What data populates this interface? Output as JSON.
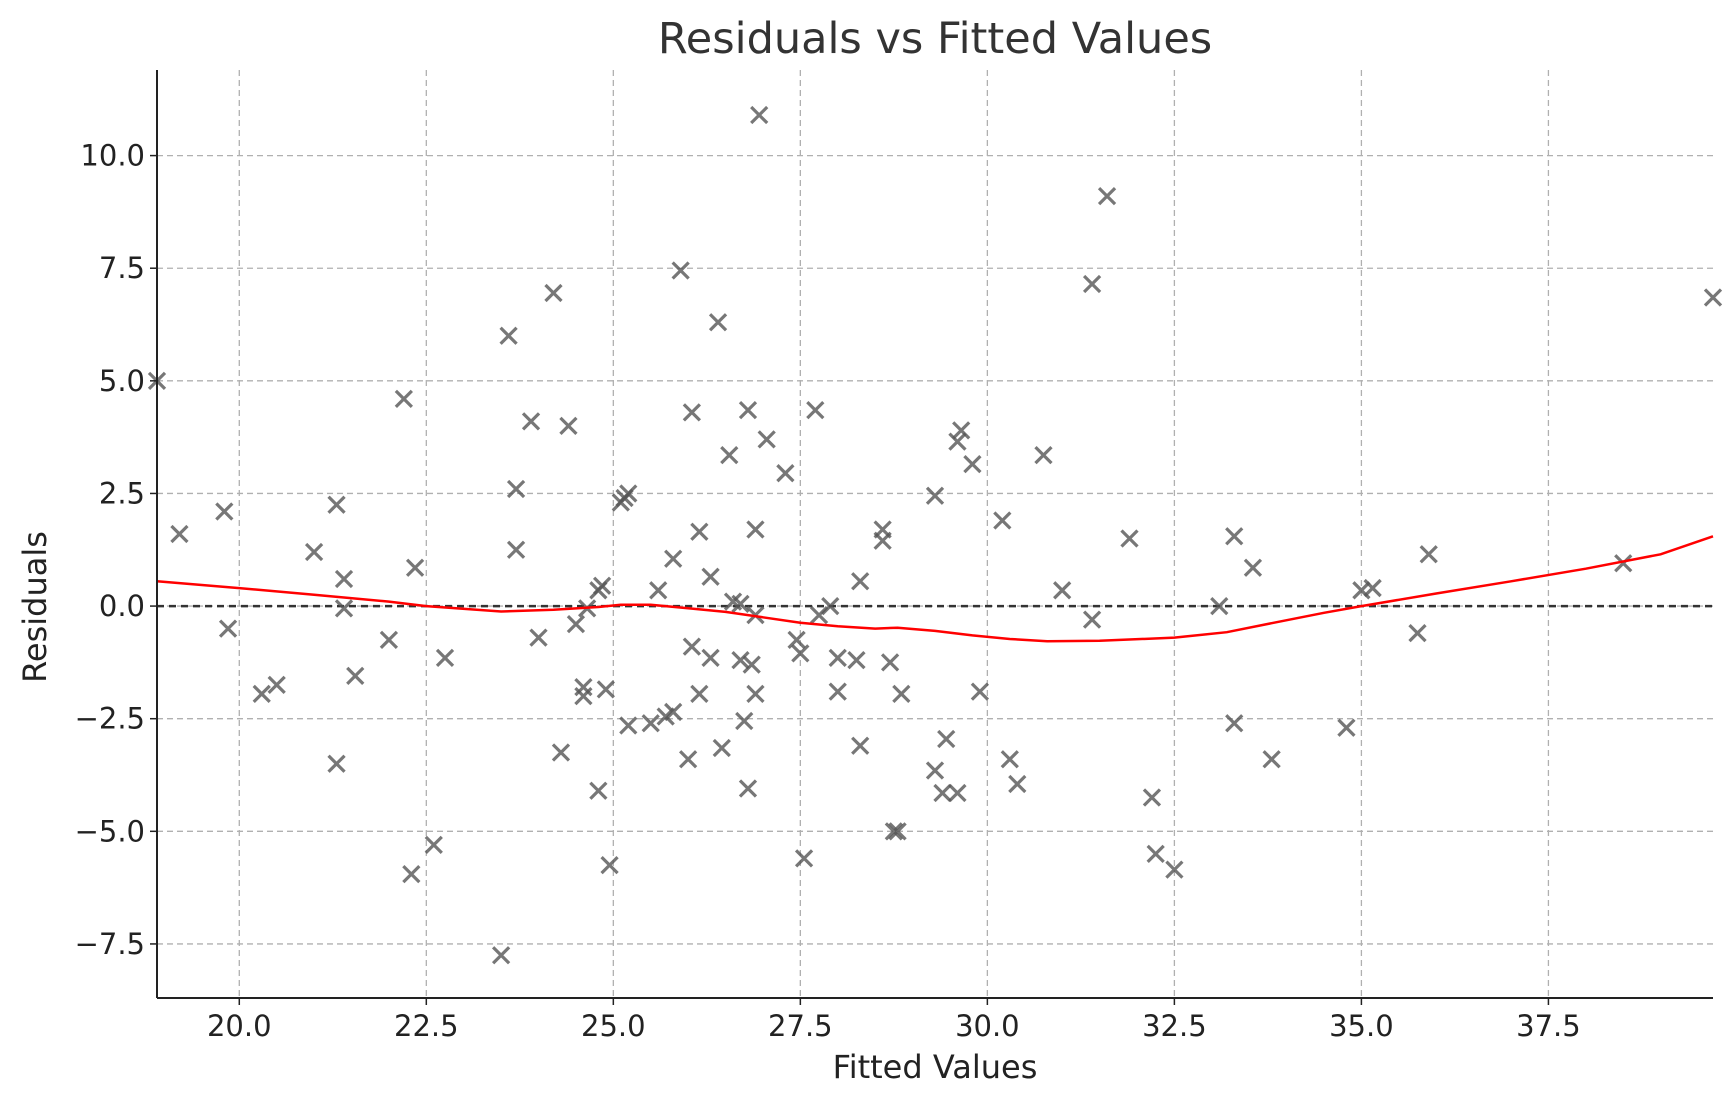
{
  "chart_data": {
    "type": "scatter",
    "title": "Residuals vs Fitted Values",
    "xlabel": "Fitted Values",
    "ylabel": "Residuals",
    "xlim": [
      18.9,
      39.7
    ],
    "ylim": [
      -8.7,
      11.9
    ],
    "xticks": [
      20.0,
      22.5,
      25.0,
      27.5,
      30.0,
      32.5,
      35.0,
      37.5
    ],
    "xtick_labels": [
      "20.0",
      "22.5",
      "25.0",
      "27.5",
      "30.0",
      "32.5",
      "35.0",
      "37.5"
    ],
    "yticks": [
      10.0,
      7.5,
      5.0,
      2.5,
      0.0,
      -2.5,
      -5.0,
      -7.5
    ],
    "ytick_labels": [
      "10.0",
      "7.5",
      "5.0",
      "2.5",
      "0.0",
      "−2.5",
      "−5.0",
      "−7.5"
    ],
    "grid": true,
    "zero_line": 0.0,
    "colors": {
      "points": "#555555",
      "smooth": "#ff0000",
      "zero_line": "#333333",
      "grid": "#b0b0b0",
      "axis": "#222222"
    },
    "point_marker": "x",
    "points": [
      {
        "x": 18.9,
        "y": 5.0
      },
      {
        "x": 19.2,
        "y": 1.6
      },
      {
        "x": 19.8,
        "y": 2.1
      },
      {
        "x": 19.85,
        "y": -0.5
      },
      {
        "x": 20.3,
        "y": -1.95
      },
      {
        "x": 20.5,
        "y": -1.75
      },
      {
        "x": 21.0,
        "y": 1.2
      },
      {
        "x": 21.3,
        "y": 2.25
      },
      {
        "x": 21.4,
        "y": 0.6
      },
      {
        "x": 21.4,
        "y": -0.05
      },
      {
        "x": 21.55,
        "y": -1.55
      },
      {
        "x": 21.3,
        "y": -3.5
      },
      {
        "x": 22.0,
        "y": -0.75
      },
      {
        "x": 22.2,
        "y": 4.6
      },
      {
        "x": 22.35,
        "y": 0.85
      },
      {
        "x": 22.3,
        "y": -5.95
      },
      {
        "x": 22.6,
        "y": -5.3
      },
      {
        "x": 22.75,
        "y": -1.15
      },
      {
        "x": 23.5,
        "y": -7.75
      },
      {
        "x": 23.6,
        "y": 6.0
      },
      {
        "x": 23.7,
        "y": 2.6
      },
      {
        "x": 23.7,
        "y": 1.25
      },
      {
        "x": 23.9,
        "y": 4.1
      },
      {
        "x": 24.0,
        "y": -0.7
      },
      {
        "x": 24.2,
        "y": 6.95
      },
      {
        "x": 24.3,
        "y": -3.25
      },
      {
        "x": 24.4,
        "y": 4.0
      },
      {
        "x": 24.5,
        "y": -0.4
      },
      {
        "x": 24.6,
        "y": -1.8
      },
      {
        "x": 24.6,
        "y": -2.0
      },
      {
        "x": 24.65,
        "y": -0.05
      },
      {
        "x": 24.8,
        "y": 0.35
      },
      {
        "x": 24.85,
        "y": 0.45
      },
      {
        "x": 24.8,
        "y": -4.1
      },
      {
        "x": 24.9,
        "y": -1.85
      },
      {
        "x": 24.95,
        "y": -5.75
      },
      {
        "x": 25.1,
        "y": 2.3
      },
      {
        "x": 25.15,
        "y": 2.4
      },
      {
        "x": 25.2,
        "y": 2.5
      },
      {
        "x": 25.2,
        "y": -2.65
      },
      {
        "x": 25.5,
        "y": -2.6
      },
      {
        "x": 25.6,
        "y": 0.35
      },
      {
        "x": 25.7,
        "y": -2.45
      },
      {
        "x": 25.8,
        "y": 1.05
      },
      {
        "x": 25.8,
        "y": -2.35
      },
      {
        "x": 25.9,
        "y": 7.45
      },
      {
        "x": 26.0,
        "y": -3.4
      },
      {
        "x": 26.05,
        "y": 4.3
      },
      {
        "x": 26.05,
        "y": -0.9
      },
      {
        "x": 26.15,
        "y": 1.65
      },
      {
        "x": 26.15,
        "y": -1.95
      },
      {
        "x": 26.3,
        "y": -1.15
      },
      {
        "x": 26.3,
        "y": 0.65
      },
      {
        "x": 26.4,
        "y": 6.3
      },
      {
        "x": 26.45,
        "y": -3.15
      },
      {
        "x": 26.55,
        "y": 3.35
      },
      {
        "x": 26.6,
        "y": 0.1
      },
      {
        "x": 26.7,
        "y": 0.05
      },
      {
        "x": 26.7,
        "y": -1.2
      },
      {
        "x": 26.75,
        "y": -2.55
      },
      {
        "x": 26.8,
        "y": 4.35
      },
      {
        "x": 26.85,
        "y": -1.3
      },
      {
        "x": 26.8,
        "y": -4.05
      },
      {
        "x": 26.9,
        "y": 1.7
      },
      {
        "x": 26.9,
        "y": -0.2
      },
      {
        "x": 26.9,
        "y": -1.95
      },
      {
        "x": 26.95,
        "y": 10.9
      },
      {
        "x": 27.05,
        "y": 3.7
      },
      {
        "x": 27.3,
        "y": 2.95
      },
      {
        "x": 27.45,
        "y": -0.75
      },
      {
        "x": 27.5,
        "y": -1.05
      },
      {
        "x": 27.55,
        "y": -5.6
      },
      {
        "x": 27.7,
        "y": 4.35
      },
      {
        "x": 27.75,
        "y": -0.2
      },
      {
        "x": 27.9,
        "y": 0.0
      },
      {
        "x": 28.0,
        "y": -1.15
      },
      {
        "x": 28.0,
        "y": -1.9
      },
      {
        "x": 28.25,
        "y": -1.2
      },
      {
        "x": 28.3,
        "y": 0.55
      },
      {
        "x": 28.3,
        "y": -3.1
      },
      {
        "x": 28.6,
        "y": 1.7
      },
      {
        "x": 28.6,
        "y": 1.45
      },
      {
        "x": 28.7,
        "y": -1.25
      },
      {
        "x": 28.75,
        "y": -5.0
      },
      {
        "x": 28.8,
        "y": -5.0
      },
      {
        "x": 28.85,
        "y": -1.95
      },
      {
        "x": 29.3,
        "y": -3.65
      },
      {
        "x": 29.3,
        "y": 2.45
      },
      {
        "x": 29.4,
        "y": -4.15
      },
      {
        "x": 29.45,
        "y": -2.95
      },
      {
        "x": 29.6,
        "y": 3.65
      },
      {
        "x": 29.65,
        "y": 3.9
      },
      {
        "x": 29.6,
        "y": -4.15
      },
      {
        "x": 29.8,
        "y": 3.15
      },
      {
        "x": 29.9,
        "y": -1.9
      },
      {
        "x": 30.2,
        "y": 1.9
      },
      {
        "x": 30.3,
        "y": -3.4
      },
      {
        "x": 30.4,
        "y": -3.95
      },
      {
        "x": 30.75,
        "y": 3.35
      },
      {
        "x": 31.0,
        "y": 0.35
      },
      {
        "x": 31.4,
        "y": 7.15
      },
      {
        "x": 31.4,
        "y": -0.3
      },
      {
        "x": 31.6,
        "y": 9.1
      },
      {
        "x": 31.9,
        "y": 1.5
      },
      {
        "x": 32.2,
        "y": -4.25
      },
      {
        "x": 32.25,
        "y": -5.5
      },
      {
        "x": 32.5,
        "y": -5.85
      },
      {
        "x": 33.1,
        "y": 0.0
      },
      {
        "x": 33.3,
        "y": 1.55
      },
      {
        "x": 33.3,
        "y": -2.6
      },
      {
        "x": 33.55,
        "y": 0.85
      },
      {
        "x": 33.8,
        "y": -3.4
      },
      {
        "x": 34.8,
        "y": -2.7
      },
      {
        "x": 35.0,
        "y": 0.35
      },
      {
        "x": 35.15,
        "y": 0.4
      },
      {
        "x": 35.75,
        "y": -0.6
      },
      {
        "x": 35.9,
        "y": 1.15
      },
      {
        "x": 38.5,
        "y": 0.95
      },
      {
        "x": 39.7,
        "y": 6.85
      }
    ],
    "smooth_line": [
      {
        "x": 18.9,
        "y": 0.55
      },
      {
        "x": 20.0,
        "y": 0.4
      },
      {
        "x": 21.0,
        "y": 0.25
      },
      {
        "x": 22.0,
        "y": 0.1
      },
      {
        "x": 22.5,
        "y": 0.0
      },
      {
        "x": 23.5,
        "y": -0.12
      },
      {
        "x": 24.2,
        "y": -0.08
      },
      {
        "x": 24.8,
        "y": -0.02
      },
      {
        "x": 25.1,
        "y": 0.03
      },
      {
        "x": 25.5,
        "y": 0.03
      },
      {
        "x": 26.0,
        "y": -0.05
      },
      {
        "x": 26.5,
        "y": -0.13
      },
      {
        "x": 27.0,
        "y": -0.25
      },
      {
        "x": 27.5,
        "y": -0.37
      },
      {
        "x": 28.0,
        "y": -0.45
      },
      {
        "x": 28.5,
        "y": -0.5
      },
      {
        "x": 28.8,
        "y": -0.48
      },
      {
        "x": 29.3,
        "y": -0.55
      },
      {
        "x": 29.8,
        "y": -0.65
      },
      {
        "x": 30.3,
        "y": -0.73
      },
      {
        "x": 30.8,
        "y": -0.78
      },
      {
        "x": 31.5,
        "y": -0.77
      },
      {
        "x": 32.5,
        "y": -0.7
      },
      {
        "x": 33.2,
        "y": -0.58
      },
      {
        "x": 33.8,
        "y": -0.38
      },
      {
        "x": 34.5,
        "y": -0.15
      },
      {
        "x": 35.0,
        "y": 0.0
      },
      {
        "x": 36.0,
        "y": 0.28
      },
      {
        "x": 37.0,
        "y": 0.55
      },
      {
        "x": 38.0,
        "y": 0.83
      },
      {
        "x": 39.0,
        "y": 1.15
      },
      {
        "x": 39.7,
        "y": 1.55
      }
    ]
  }
}
